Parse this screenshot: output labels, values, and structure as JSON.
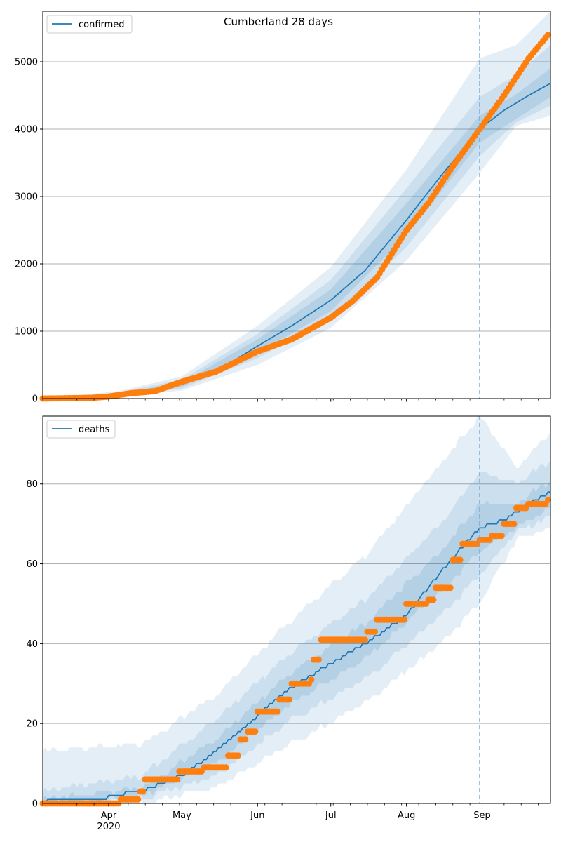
{
  "title": "Cumberland 28 days",
  "colors": {
    "model": "#1f77b4",
    "observed": "#ff7f0e",
    "band": "#1f77b4",
    "grid": "#b0b0b0",
    "forecast_line": "#6fa8dc"
  },
  "x_axis": {
    "start": "2020-03-05",
    "end": "2020-09-29",
    "month_labels": [
      "Apr",
      "May",
      "Jun",
      "Jul",
      "Aug",
      "Sep"
    ],
    "month_dates": [
      "2020-04-01",
      "2020-05-01",
      "2020-06-01",
      "2020-07-01",
      "2020-08-01",
      "2020-09-01"
    ],
    "year_label": "2020",
    "forecast_start": "2020-08-31"
  },
  "chart_data": [
    {
      "type": "line",
      "legend": "confirmed",
      "legend_position": "top-left",
      "grid": "horizontal",
      "ylim": [
        0,
        5750
      ],
      "yticks": [
        "0",
        "1000",
        "2000",
        "3000",
        "4000",
        "5000"
      ],
      "model_median": [
        [
          "2020-03-05",
          0
        ],
        [
          "2020-03-25",
          15
        ],
        [
          "2020-04-05",
          60
        ],
        [
          "2020-04-20",
          130
        ],
        [
          "2020-05-01",
          210
        ],
        [
          "2020-05-15",
          400
        ],
        [
          "2020-06-01",
          780
        ],
        [
          "2020-06-15",
          1080
        ],
        [
          "2020-07-01",
          1460
        ],
        [
          "2020-07-15",
          1900
        ],
        [
          "2020-08-01",
          2650
        ],
        [
          "2020-08-15",
          3300
        ],
        [
          "2020-08-31",
          4000
        ],
        [
          "2020-09-10",
          4280
        ],
        [
          "2020-09-20",
          4500
        ],
        [
          "2020-09-29",
          4680
        ]
      ],
      "band_inner": [
        [
          "2020-03-05",
          0,
          0
        ],
        [
          "2020-04-05",
          45,
          75
        ],
        [
          "2020-05-01",
          180,
          240
        ],
        [
          "2020-06-01",
          680,
          880
        ],
        [
          "2020-07-01",
          1300,
          1620
        ],
        [
          "2020-08-01",
          2420,
          2900
        ],
        [
          "2020-08-31",
          3800,
          4200
        ],
        [
          "2020-09-15",
          4150,
          4520
        ],
        [
          "2020-09-29",
          4480,
          4900
        ]
      ],
      "band_middle": [
        [
          "2020-03-05",
          0,
          0
        ],
        [
          "2020-04-05",
          35,
          90
        ],
        [
          "2020-05-01",
          150,
          280
        ],
        [
          "2020-06-01",
          600,
          960
        ],
        [
          "2020-07-01",
          1180,
          1760
        ],
        [
          "2020-08-01",
          2250,
          3120
        ],
        [
          "2020-08-31",
          3600,
          4480
        ],
        [
          "2020-09-15",
          4100,
          4800
        ],
        [
          "2020-09-29",
          4350,
          5250
        ]
      ],
      "band_outer": [
        [
          "2020-03-05",
          0,
          0
        ],
        [
          "2020-04-05",
          25,
          110
        ],
        [
          "2020-05-01",
          120,
          330
        ],
        [
          "2020-06-01",
          500,
          1080
        ],
        [
          "2020-07-01",
          1050,
          1950
        ],
        [
          "2020-08-01",
          2050,
          3400
        ],
        [
          "2020-08-31",
          3350,
          5050
        ],
        [
          "2020-09-15",
          4050,
          5250
        ],
        [
          "2020-09-29",
          4200,
          5750
        ]
      ],
      "observed": [
        [
          "2020-03-05",
          0
        ],
        [
          "2020-03-25",
          10
        ],
        [
          "2020-04-01",
          30
        ],
        [
          "2020-04-10",
          80
        ],
        [
          "2020-04-20",
          110
        ],
        [
          "2020-05-01",
          250
        ],
        [
          "2020-05-15",
          400
        ],
        [
          "2020-06-01",
          700
        ],
        [
          "2020-06-15",
          880
        ],
        [
          "2020-07-01",
          1200
        ],
        [
          "2020-07-10",
          1450
        ],
        [
          "2020-07-20",
          1800
        ],
        [
          "2020-08-01",
          2500
        ],
        [
          "2020-08-10",
          2900
        ],
        [
          "2020-08-20",
          3450
        ],
        [
          "2020-08-31",
          4000
        ],
        [
          "2020-09-10",
          4500
        ],
        [
          "2020-09-20",
          5050
        ],
        [
          "2020-09-28",
          5400
        ]
      ]
    },
    {
      "type": "line",
      "legend": "deaths",
      "legend_position": "top-left",
      "grid": "horizontal",
      "ylim": [
        0,
        97
      ],
      "yticks": [
        "0",
        "20",
        "40",
        "60",
        "80"
      ],
      "model_median": [
        [
          "2020-03-05",
          0
        ],
        [
          "2020-03-08",
          1
        ],
        [
          "2020-03-31",
          1
        ],
        [
          "2020-04-01",
          2
        ],
        [
          "2020-04-15",
          3
        ],
        [
          "2020-05-01",
          7
        ],
        [
          "2020-05-15",
          13
        ],
        [
          "2020-06-01",
          22
        ],
        [
          "2020-06-15",
          29
        ],
        [
          "2020-07-01",
          35
        ],
        [
          "2020-07-15",
          40
        ],
        [
          "2020-08-01",
          47
        ],
        [
          "2020-08-15",
          58
        ],
        [
          "2020-08-31",
          69
        ],
        [
          "2020-09-10",
          71
        ],
        [
          "2020-09-20",
          75
        ],
        [
          "2020-09-29",
          78
        ]
      ],
      "band_inner": [
        [
          "2020-03-05",
          0,
          1
        ],
        [
          "2020-04-15",
          2,
          4
        ],
        [
          "2020-05-15",
          10,
          16
        ],
        [
          "2020-06-15",
          25,
          33
        ],
        [
          "2020-07-15",
          36,
          45
        ],
        [
          "2020-08-15",
          53,
          63
        ],
        [
          "2020-08-31",
          63,
          75
        ],
        [
          "2020-09-15",
          69,
          75
        ],
        [
          "2020-09-29",
          74,
          81
        ]
      ],
      "band_middle": [
        [
          "2020-03-05",
          0,
          3
        ],
        [
          "2020-04-15",
          1,
          7
        ],
        [
          "2020-05-15",
          7,
          21
        ],
        [
          "2020-06-15",
          21,
          38
        ],
        [
          "2020-07-15",
          31,
          51
        ],
        [
          "2020-08-15",
          47,
          70
        ],
        [
          "2020-08-31",
          57,
          83
        ],
        [
          "2020-09-15",
          68,
          80
        ],
        [
          "2020-09-29",
          72,
          86
        ]
      ],
      "band_outer": [
        [
          "2020-03-05",
          0,
          13
        ],
        [
          "2020-04-15",
          0,
          15
        ],
        [
          "2020-05-15",
          4,
          27
        ],
        [
          "2020-06-15",
          15,
          46
        ],
        [
          "2020-07-15",
          25,
          62
        ],
        [
          "2020-08-15",
          40,
          85
        ],
        [
          "2020-08-31",
          50,
          97
        ],
        [
          "2020-09-15",
          66,
          84
        ],
        [
          "2020-09-29",
          69,
          93
        ]
      ],
      "observed": [
        [
          "2020-03-05",
          0
        ],
        [
          "2020-04-06",
          1
        ],
        [
          "2020-04-14",
          3
        ],
        [
          "2020-04-16",
          6
        ],
        [
          "2020-04-30",
          8
        ],
        [
          "2020-05-10",
          9
        ],
        [
          "2020-05-20",
          12
        ],
        [
          "2020-05-25",
          16
        ],
        [
          "2020-05-28",
          18
        ],
        [
          "2020-06-01",
          23
        ],
        [
          "2020-06-10",
          26
        ],
        [
          "2020-06-15",
          30
        ],
        [
          "2020-06-23",
          31
        ],
        [
          "2020-06-24",
          36
        ],
        [
          "2020-06-27",
          41
        ],
        [
          "2020-07-13",
          41
        ],
        [
          "2020-07-16",
          43
        ],
        [
          "2020-07-20",
          46
        ],
        [
          "2020-08-01",
          50
        ],
        [
          "2020-08-10",
          51
        ],
        [
          "2020-08-13",
          54
        ],
        [
          "2020-08-20",
          61
        ],
        [
          "2020-08-24",
          65
        ],
        [
          "2020-08-31",
          66
        ],
        [
          "2020-09-05",
          67
        ],
        [
          "2020-09-10",
          70
        ],
        [
          "2020-09-15",
          74
        ],
        [
          "2020-09-20",
          75
        ],
        [
          "2020-09-28",
          76
        ]
      ]
    }
  ]
}
